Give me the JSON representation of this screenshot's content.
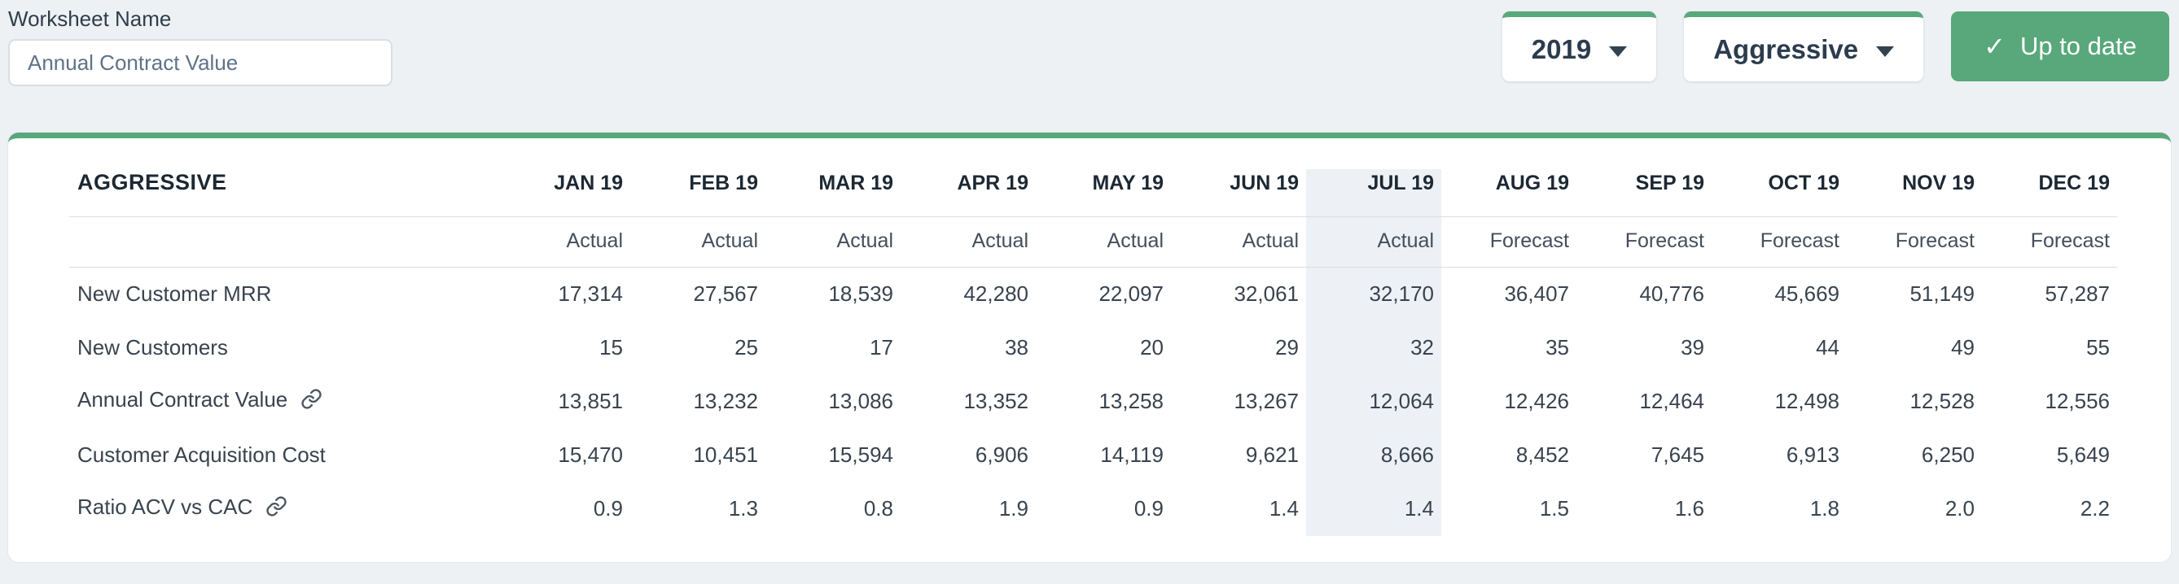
{
  "colors": {
    "accent_green": "#58a87b",
    "highlight_column_bg": "#edf1f5",
    "page_background": "#edf1f4",
    "dark_heading_text": "#1c2833"
  },
  "header": {
    "worksheet_name_label": "Worksheet Name",
    "worksheet_name_value": "Annual Contract Value",
    "year_selector_value": "2019",
    "scenario_selector_value": "Aggressive",
    "status_button_label": "Up to date",
    "status_check_glyph": "✓"
  },
  "table": {
    "title": "AGGRESSIVE",
    "months": [
      "JAN 19",
      "FEB 19",
      "MAR 19",
      "APR 19",
      "MAY 19",
      "JUN 19",
      "JUL 19",
      "AUG 19",
      "SEP 19",
      "OCT 19",
      "NOV 19",
      "DEC 19"
    ],
    "period_types": [
      "Actual",
      "Actual",
      "Actual",
      "Actual",
      "Actual",
      "Actual",
      "Actual",
      "Forecast",
      "Forecast",
      "Forecast",
      "Forecast",
      "Forecast"
    ],
    "highlighted_month": "JUL 19",
    "highlighted_index": 6,
    "rows": [
      {
        "label": "New Customer MRR",
        "linked": false,
        "values": [
          "17,314",
          "27,567",
          "18,539",
          "42,280",
          "22,097",
          "32,061",
          "32,170",
          "36,407",
          "40,776",
          "45,669",
          "51,149",
          "57,287"
        ]
      },
      {
        "label": "New Customers",
        "linked": false,
        "values": [
          "15",
          "25",
          "17",
          "38",
          "20",
          "29",
          "32",
          "35",
          "39",
          "44",
          "49",
          "55"
        ]
      },
      {
        "label": "Annual Contract Value",
        "linked": true,
        "values": [
          "13,851",
          "13,232",
          "13,086",
          "13,352",
          "13,258",
          "13,267",
          "12,064",
          "12,426",
          "12,464",
          "12,498",
          "12,528",
          "12,556"
        ]
      },
      {
        "label": "Customer Acquisition Cost",
        "linked": false,
        "values": [
          "15,470",
          "10,451",
          "15,594",
          "6,906",
          "14,119",
          "9,621",
          "8,666",
          "8,452",
          "7,645",
          "6,913",
          "6,250",
          "5,649"
        ]
      },
      {
        "label": "Ratio ACV vs CAC",
        "linked": true,
        "values": [
          "0.9",
          "1.3",
          "0.8",
          "1.9",
          "0.9",
          "1.4",
          "1.4",
          "1.5",
          "1.6",
          "1.8",
          "2.0",
          "2.2"
        ]
      }
    ]
  }
}
